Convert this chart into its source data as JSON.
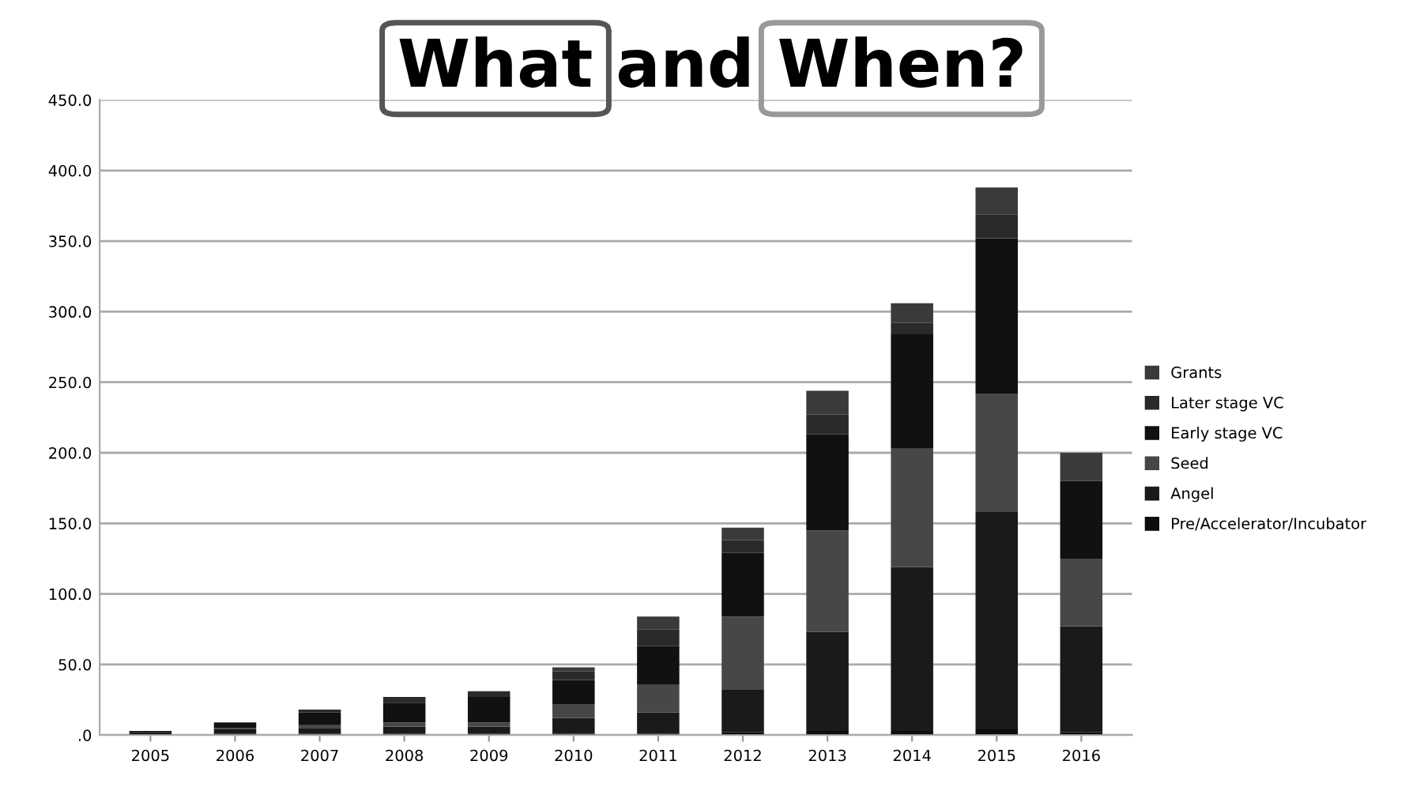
{
  "chart_data": {
    "type": "bar",
    "stacked": true,
    "title": "What and When?",
    "categories": [
      "2005",
      "2006",
      "2007",
      "2008",
      "2009",
      "2010",
      "2011",
      "2012",
      "2013",
      "2014",
      "2015",
      "2016"
    ],
    "series": [
      {
        "name": "Pre/Accelerator/Incubator",
        "color": "#0d0d0d",
        "values": [
          0,
          1,
          1,
          1,
          1,
          1,
          1,
          2,
          3,
          3,
          4,
          2
        ]
      },
      {
        "name": "Angel",
        "color": "#1a1a1a",
        "values": [
          2,
          3,
          4,
          5,
          5,
          11,
          15,
          30,
          70,
          116,
          154,
          75
        ]
      },
      {
        "name": "Seed",
        "color": "#474747",
        "values": [
          0,
          1,
          2,
          3,
          3,
          10,
          20,
          52,
          72,
          84,
          84,
          48
        ]
      },
      {
        "name": "Early stage VC",
        "color": "#111111",
        "values": [
          1,
          4,
          9,
          14,
          18,
          17,
          27,
          45,
          68,
          81,
          110,
          55
        ]
      },
      {
        "name": "Later stage VC",
        "color": "#2a2a2a",
        "values": [
          0,
          0,
          2,
          4,
          4,
          6,
          12,
          9,
          14,
          8,
          17,
          0
        ]
      },
      {
        "name": "Grants",
        "color": "#3a3a3a",
        "values": [
          0,
          0,
          0,
          0,
          0,
          3,
          9,
          9,
          17,
          14,
          19,
          20
        ]
      }
    ],
    "ylim": [
      0,
      450
    ],
    "yticks": [
      {
        "value": 0,
        "label": ".0"
      },
      {
        "value": 50,
        "label": "50.0"
      },
      {
        "value": 100,
        "label": "100.0"
      },
      {
        "value": 150,
        "label": "150.0"
      },
      {
        "value": 200,
        "label": "200.0"
      },
      {
        "value": 250,
        "label": "250.0"
      },
      {
        "value": 300,
        "label": "300.0"
      },
      {
        "value": 350,
        "label": "350.0"
      },
      {
        "value": 400,
        "label": "400.0"
      },
      {
        "value": 450,
        "label": "450.0"
      }
    ],
    "grid": "y",
    "legend": "right"
  }
}
